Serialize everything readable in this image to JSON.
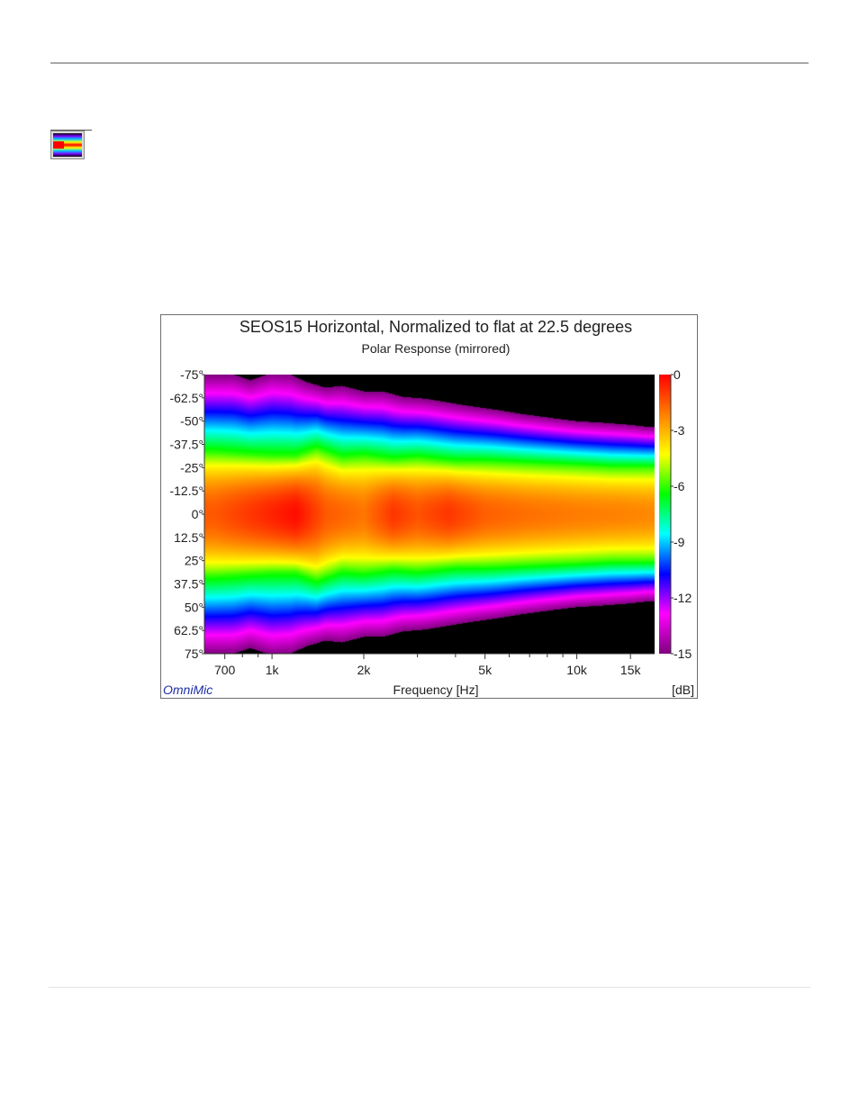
{
  "page": {
    "thumbnail": {
      "icon": "polar-map-thumbnail-icon"
    }
  },
  "chart_data": {
    "type": "heatmap",
    "title": "SEOS15 Horizontal, Normalized to flat at 22.5 degrees",
    "subtitle": "Polar Response (mirrored)",
    "xlabel": "Frequency [Hz]",
    "colorbar_label": "[dB]",
    "brand": "OmniMic",
    "x_scale": "log",
    "xlim": [
      600,
      18000
    ],
    "x_ticks": [
      {
        "value": 700,
        "label": "700"
      },
      {
        "value": 1000,
        "label": "1k"
      },
      {
        "value": 2000,
        "label": "2k"
      },
      {
        "value": 5000,
        "label": "5k"
      },
      {
        "value": 10000,
        "label": "10k"
      },
      {
        "value": 15000,
        "label": "15k"
      }
    ],
    "x_minor_ticks": [
      800,
      900,
      3000,
      4000,
      6000,
      7000,
      8000,
      9000
    ],
    "ylim": [
      -75,
      75
    ],
    "y_ticks": [
      {
        "value": -75,
        "label": "-75°"
      },
      {
        "value": -62.5,
        "label": "-62.5°"
      },
      {
        "value": -50,
        "label": "-50°"
      },
      {
        "value": -37.5,
        "label": "-37.5°"
      },
      {
        "value": -25,
        "label": "-25°"
      },
      {
        "value": -12.5,
        "label": "-12.5°"
      },
      {
        "value": 0,
        "label": "0°"
      },
      {
        "value": 12.5,
        "label": "12.5°"
      },
      {
        "value": 25,
        "label": "25°"
      },
      {
        "value": 37.5,
        "label": "37.5°"
      },
      {
        "value": 50,
        "label": "50°"
      },
      {
        "value": 62.5,
        "label": "62.5°"
      },
      {
        "value": 75,
        "label": "75°"
      }
    ],
    "colorbar": {
      "range": [
        -15,
        0
      ],
      "ticks": [
        {
          "value": 0,
          "label": "0"
        },
        {
          "value": -3,
          "label": "-3"
        },
        {
          "value": -6,
          "label": "-6"
        },
        {
          "value": -9,
          "label": "-9"
        },
        {
          "value": -12,
          "label": "-12"
        },
        {
          "value": -15,
          "label": "-15"
        }
      ],
      "colors": [
        "#ff0000",
        "#ff7f00",
        "#ffff00",
        "#00ff00",
        "#00ffff",
        "#0000ff",
        "#ff00ff",
        "#800080"
      ],
      "below_range_color": "#000000"
    },
    "beamwidth_minus15dB": {
      "frequency": [
        650,
        750,
        850,
        1000,
        1150,
        1300,
        1500,
        1700,
        2000,
        2300,
        2700,
        3200,
        3800,
        4500,
        5500,
        6500,
        8000,
        10000,
        12500,
        15000,
        17000
      ],
      "angle": [
        75,
        75,
        72,
        76,
        75,
        71,
        68,
        69,
        66,
        66,
        63,
        62,
        60,
        58,
        56,
        54,
        52,
        50,
        49,
        48,
        47
      ]
    },
    "beamwidth_minus6dB": {
      "frequency": [
        650,
        800,
        1000,
        1200,
        1400,
        1700,
        2000,
        2500,
        3000,
        4000,
        5000,
        7000,
        10000,
        13000,
        17000
      ],
      "angle": [
        33,
        32,
        31,
        31,
        35,
        30,
        31,
        29,
        30,
        28,
        28,
        27,
        26,
        25,
        25
      ]
    },
    "on_axis_level": {
      "frequency": [
        650,
        900,
        1200,
        1500,
        2000,
        2500,
        3000,
        3800,
        5000,
        7000,
        10000,
        14000,
        17000
      ],
      "value": [
        -1.5,
        -0.8,
        -0.2,
        -1.5,
        -2.0,
        -0.9,
        -1.4,
        -0.9,
        -1.6,
        -1.9,
        -2.1,
        -2.2,
        -2.3
      ]
    }
  }
}
